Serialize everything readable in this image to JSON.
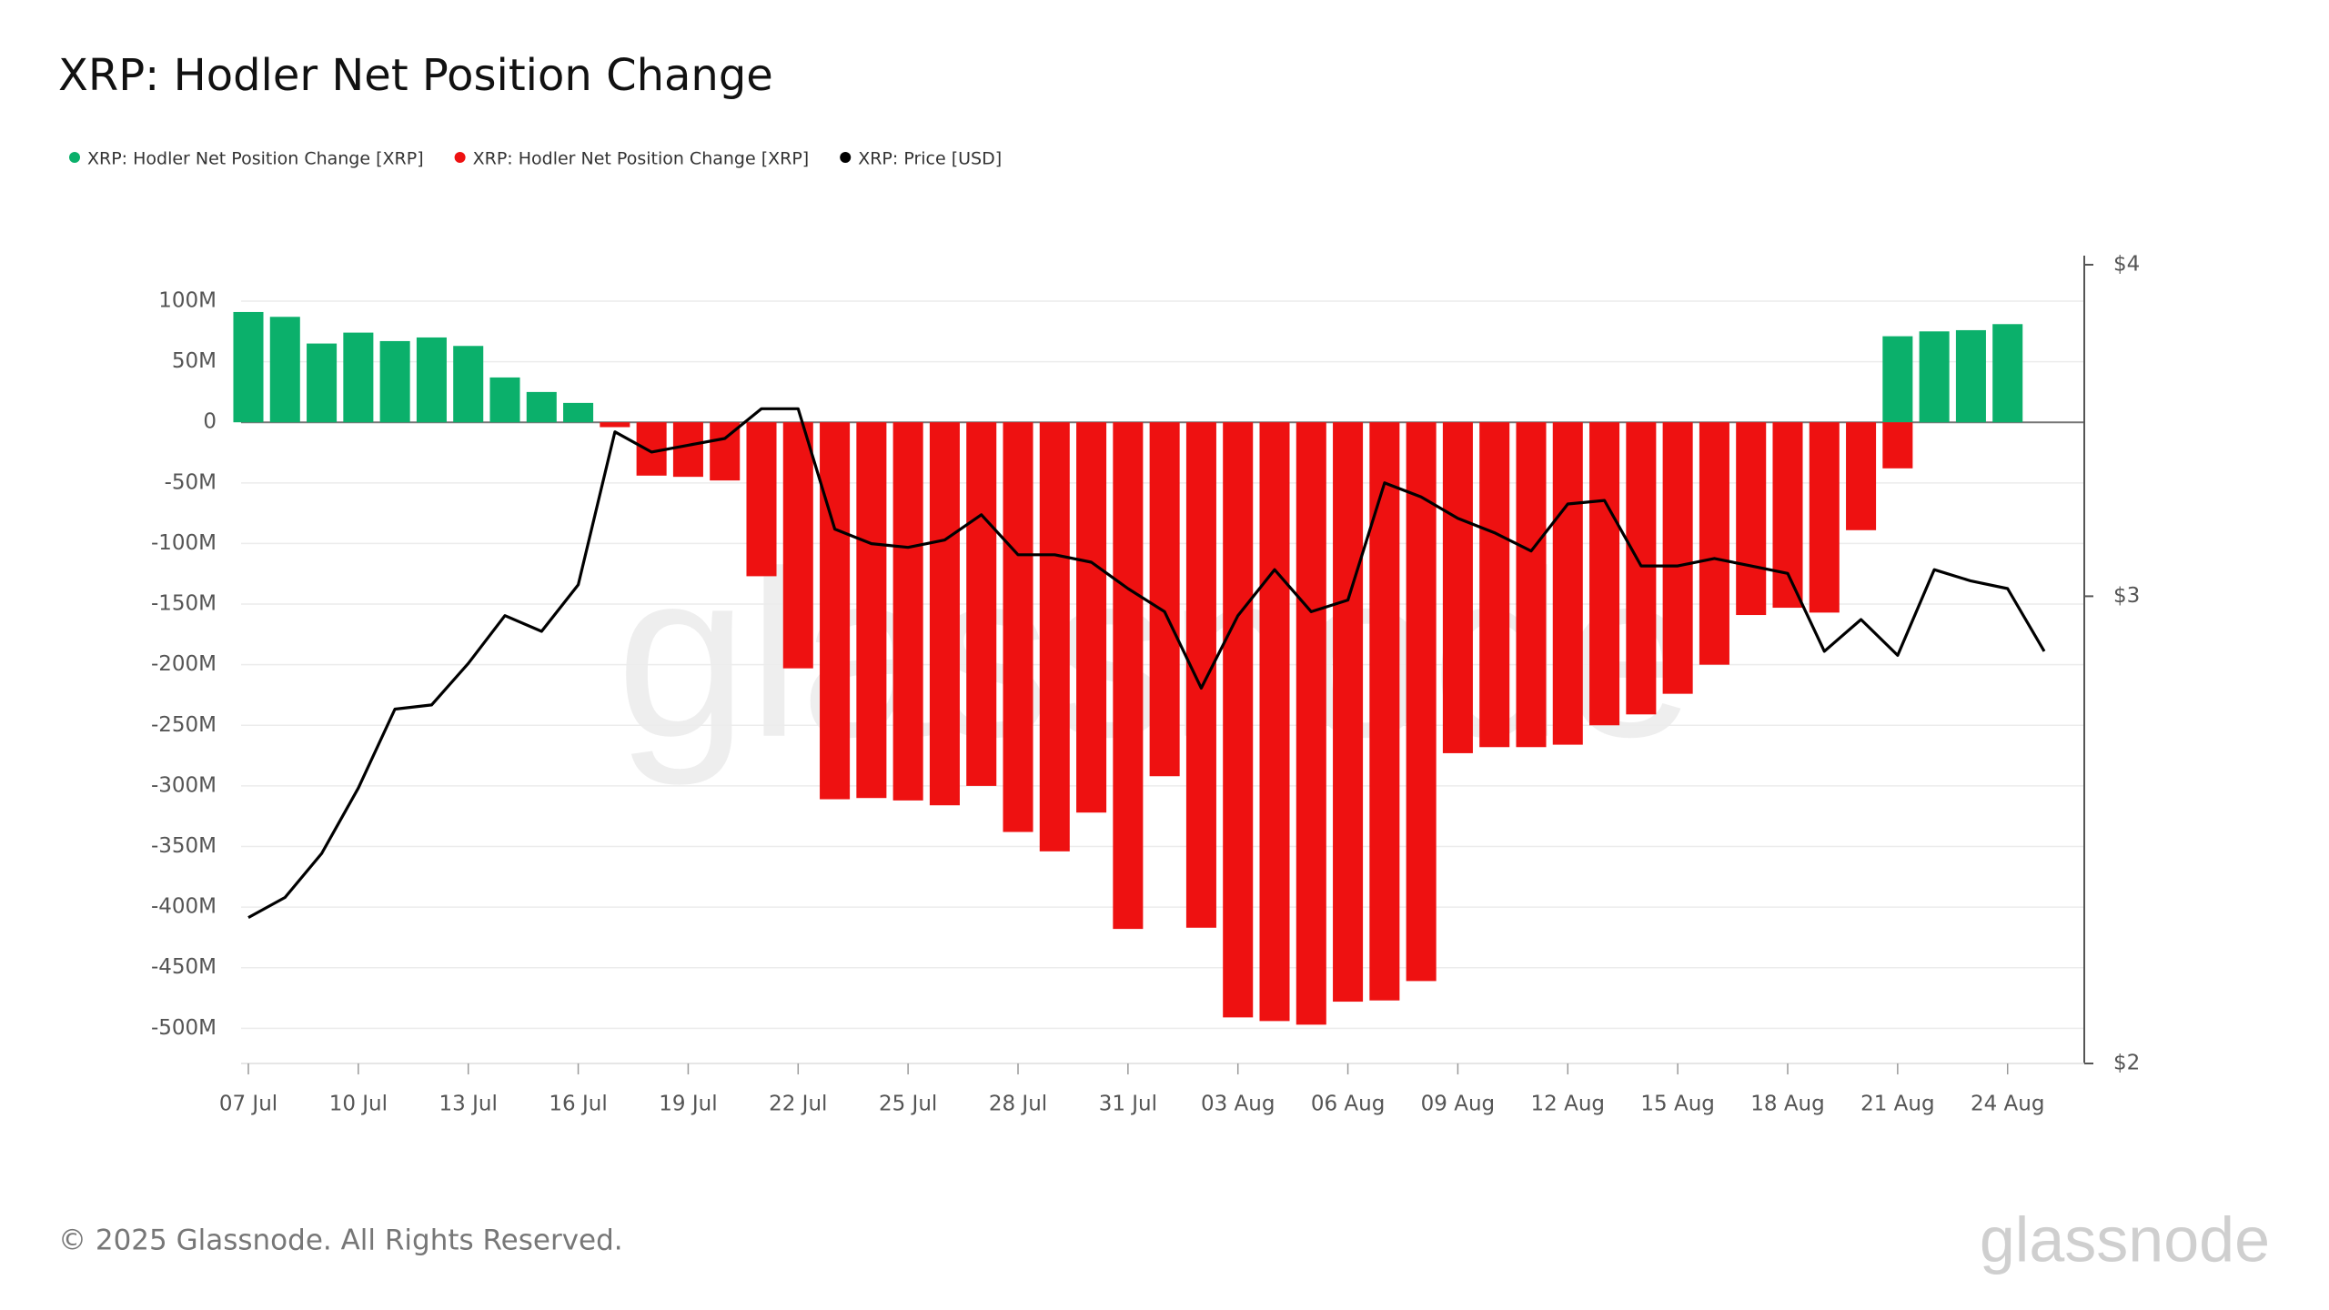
{
  "chart_data": {
    "type": "bar",
    "title": "XRP: Hodler Net Position Change",
    "categories": [
      "07 Jul",
      null,
      null,
      "10 Jul",
      null,
      null,
      "13 Jul",
      null,
      null,
      "16 Jul",
      null,
      null,
      "19 Jul",
      null,
      null,
      "22 Jul",
      null,
      null,
      "25 Jul",
      null,
      null,
      "28 Jul",
      null,
      null,
      "31 Jul",
      null,
      null,
      "03 Aug",
      null,
      null,
      "06 Aug",
      null,
      null,
      "09 Aug",
      null,
      null,
      "12 Aug",
      null,
      null,
      "15 Aug",
      null,
      null,
      "18 Aug",
      null,
      null,
      "21 Aug",
      null,
      null,
      "24 Aug",
      null
    ],
    "series": [
      {
        "name": "XRP: Hodler Net Position Change [XRP]",
        "color": "#0bb06b",
        "values": [
          91,
          87,
          65,
          74,
          67,
          70,
          63,
          37,
          25,
          16,
          null,
          null,
          null,
          null,
          null,
          null,
          null,
          null,
          null,
          null,
          null,
          null,
          null,
          null,
          null,
          null,
          null,
          null,
          null,
          null,
          null,
          null,
          null,
          null,
          null,
          null,
          null,
          null,
          null,
          null,
          null,
          null,
          null,
          null,
          null,
          71,
          75,
          76,
          81,
          null
        ]
      },
      {
        "name": "XRP: Hodler Net Position Change [XRP]",
        "color": "#ee1111",
        "values": [
          null,
          null,
          null,
          null,
          null,
          null,
          null,
          null,
          null,
          null,
          -4,
          -44,
          -45,
          -48,
          -127,
          -203,
          -311,
          -310,
          -312,
          -316,
          -300,
          -338,
          -354,
          -322,
          -418,
          -292,
          -417,
          -491,
          -494,
          -497,
          -478,
          -477,
          -461,
          -273,
          -268,
          -268,
          -266,
          -250,
          -241,
          -224,
          -200,
          -159,
          -153,
          -157,
          -89,
          -38,
          null,
          null,
          null,
          null
        ]
      },
      {
        "name": "XRP: Price [USD]",
        "color": "#000000",
        "type": "line",
        "axis": "y2",
        "values": [
          2.27,
          2.31,
          2.4,
          2.54,
          2.72,
          2.73,
          2.83,
          2.95,
          2.91,
          3.03,
          3.46,
          3.4,
          3.42,
          3.44,
          3.53,
          3.53,
          3.18,
          3.14,
          3.13,
          3.15,
          3.22,
          3.11,
          3.11,
          3.09,
          3.02,
          2.96,
          2.77,
          2.95,
          3.07,
          2.96,
          2.99,
          3.31,
          3.27,
          3.21,
          3.17,
          3.12,
          3.25,
          3.26,
          3.08,
          3.08,
          3.1,
          3.08,
          3.06,
          2.86,
          2.94,
          2.85,
          3.07,
          3.04,
          3.02,
          2.86
        ]
      }
    ],
    "ylim": [
      -529,
      130
    ],
    "yticks": [
      {
        "value": 100,
        "label": "100M"
      },
      {
        "value": 50,
        "label": "50M"
      },
      0,
      {
        "value": -50,
        "label": "-50M"
      },
      {
        "value": -100,
        "label": "-100M"
      },
      {
        "value": -150,
        "label": "-150M"
      },
      {
        "value": -200,
        "label": "-200M"
      },
      {
        "value": -250,
        "label": "-250M"
      },
      {
        "value": -300,
        "label": "-300M"
      },
      {
        "value": -350,
        "label": "-350M"
      },
      {
        "value": -400,
        "label": "-400M"
      },
      {
        "value": -450,
        "label": "-450M"
      },
      {
        "value": -500,
        "label": "-500M"
      }
    ],
    "y2lim": [
      2,
      4
    ],
    "y2ticks": [
      {
        "value": 4,
        "label": "$4"
      },
      {
        "value": 3,
        "label": "$3"
      },
      {
        "value": 2,
        "label": "$2"
      }
    ],
    "y2log": true,
    "grid": true
  },
  "footer": {
    "copyright": "© 2025 Glassnode. All Rights Reserved.",
    "logo": "glassnode",
    "watermark": "glassnode"
  }
}
